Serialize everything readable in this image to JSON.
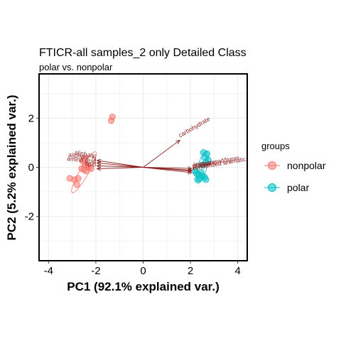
{
  "title": "FTICR-all samples_2 only Detailed Class",
  "subtitle": "polar vs. nonpolar",
  "legend_title": "groups",
  "colors": {
    "nonpolar": "#F8766D",
    "polar": "#00BFC4",
    "arrow": "#8B1A1A"
  },
  "chart_data": {
    "type": "scatter",
    "title": "FTICR-all samples_2 only Detailed Class",
    "subtitle": "polar vs. nonpolar",
    "xlabel": "PC1 (92.1% explained var.)",
    "ylabel": "PC2 (5.2% explained var.)",
    "xlim": [
      -4.4,
      4.4
    ],
    "ylim": [
      -3.8,
      3.8
    ],
    "x_ticks": [
      -4,
      -2,
      0,
      2,
      4
    ],
    "y_ticks": [
      -2,
      0,
      2
    ],
    "grid": true,
    "legend_position": "right",
    "series": [
      {
        "name": "nonpolar",
        "points": [
          {
            "x": -1.3,
            "y": 2.05
          },
          {
            "x": -1.35,
            "y": 1.9
          },
          {
            "x": -2.5,
            "y": 0.35
          },
          {
            "x": -2.55,
            "y": 0.25
          },
          {
            "x": -2.45,
            "y": 0.1
          },
          {
            "x": -2.35,
            "y": 0.05
          },
          {
            "x": -2.6,
            "y": -0.05
          },
          {
            "x": -2.4,
            "y": -0.15
          },
          {
            "x": -2.2,
            "y": -0.05
          },
          {
            "x": -2.3,
            "y": 0.0
          },
          {
            "x": -2.5,
            "y": -0.1
          },
          {
            "x": -3.1,
            "y": -0.45
          },
          {
            "x": -2.9,
            "y": -0.5
          },
          {
            "x": -2.8,
            "y": -0.7
          },
          {
            "x": -2.75,
            "y": -0.45
          }
        ]
      },
      {
        "name": "polar",
        "points": [
          {
            "x": 2.55,
            "y": 0.6
          },
          {
            "x": 2.7,
            "y": 0.55
          },
          {
            "x": 2.6,
            "y": 0.4
          },
          {
            "x": 2.75,
            "y": 0.3
          },
          {
            "x": 2.65,
            "y": 0.2
          },
          {
            "x": 2.5,
            "y": 0.1
          },
          {
            "x": 2.2,
            "y": -0.15
          },
          {
            "x": 2.25,
            "y": -0.25
          },
          {
            "x": 2.35,
            "y": -0.3
          },
          {
            "x": 2.4,
            "y": -0.45
          },
          {
            "x": 2.3,
            "y": -0.5
          },
          {
            "x": 2.5,
            "y": -0.35
          },
          {
            "x": 2.6,
            "y": -0.4
          },
          {
            "x": 2.65,
            "y": -0.5
          },
          {
            "x": 2.45,
            "y": -0.2
          }
        ]
      }
    ],
    "ellipses": [
      {
        "group": "nonpolar",
        "cx": -2.5,
        "cy": -0.2,
        "rx": 1.0,
        "ry": 0.18,
        "angle_deg": 60
      },
      {
        "group": "polar",
        "cx": 2.5,
        "cy": 0.0,
        "rx": 0.7,
        "ry": 0.18,
        "angle_deg": 75
      }
    ],
    "loadings": [
      {
        "label": "carbohydrate",
        "x": 1.55,
        "y": 1.1,
        "label_angle": -30
      },
      {
        "label": "aliphatic",
        "x": -1.95,
        "y": 0.28,
        "label_angle": 10
      },
      {
        "label": "aliphatic N",
        "x": -1.95,
        "y": 0.18,
        "label_angle": 8
      },
      {
        "label": "amino acid",
        "x": -1.95,
        "y": 0.06,
        "label_angle": 6
      },
      {
        "label": "lipid",
        "x": -1.95,
        "y": -0.06,
        "label_angle": 5
      },
      {
        "label": "aromatic",
        "x": 2.05,
        "y": -0.05,
        "label_angle": -5
      },
      {
        "label": "unsaturated/lignin",
        "x": 2.05,
        "y": -0.12,
        "label_angle": -10
      },
      {
        "label": "condensed aromatic",
        "x": 2.05,
        "y": -0.22,
        "label_angle": -10
      },
      {
        "label": "protein",
        "x": 2.05,
        "y": -0.15,
        "label_angle": -8
      }
    ]
  }
}
